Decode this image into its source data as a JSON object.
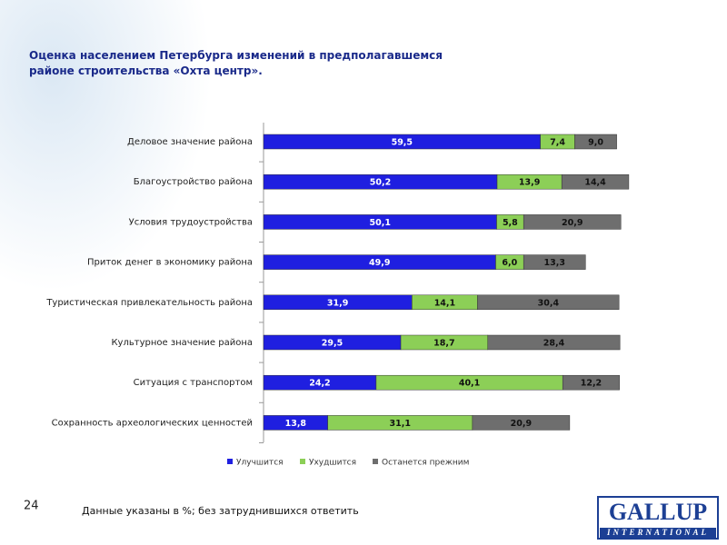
{
  "chart_data": {
    "type": "stacked-bar-horizontal",
    "title": "Оценка населением Петербурга изменений в предполагавшемся районе строительства «Охта центр».",
    "categories": [
      "Деловое значение района",
      "Благоустройство района",
      "Условия трудоустройства",
      "Приток денег в экономику района",
      "Туристическая привлекательность района",
      "Культурное значение района",
      "Ситуация с транспортом",
      "Сохранность археологических ценностей"
    ],
    "series": [
      {
        "name": "Улучшится",
        "color": "#1f1fe0",
        "values": [
          59.5,
          50.2,
          50.1,
          49.9,
          31.9,
          29.5,
          24.2,
          13.8
        ],
        "value_labels": [
          "59,5",
          "50,2",
          "50,1",
          "49,9",
          "31,9",
          "29,5",
          "24,2",
          "13,8"
        ]
      },
      {
        "name": "Ухудшится",
        "color": "#8ccf57",
        "values": [
          7.4,
          13.9,
          5.8,
          6.0,
          14.1,
          18.7,
          40.1,
          31.1
        ],
        "value_labels": [
          "7,4",
          "13,9",
          "5,8",
          "6,0",
          "14,1",
          "18,7",
          "40,1",
          "31,1"
        ]
      },
      {
        "name": "Останется прежним",
        "color": "#6e6e6e",
        "values": [
          9.0,
          14.4,
          20.9,
          13.3,
          30.4,
          28.4,
          12.2,
          20.9
        ],
        "value_labels": [
          "9,0",
          "14,4",
          "20,9",
          "13,3",
          "30,4",
          "28,4",
          "12,2",
          "20,9"
        ]
      }
    ],
    "legend": "bottom"
  },
  "page_number": "24",
  "footnote": "Данные указаны в %; без затруднившихся ответить",
  "logo": {
    "name": "GALLUP",
    "sub": "INTERNATIONAL"
  }
}
